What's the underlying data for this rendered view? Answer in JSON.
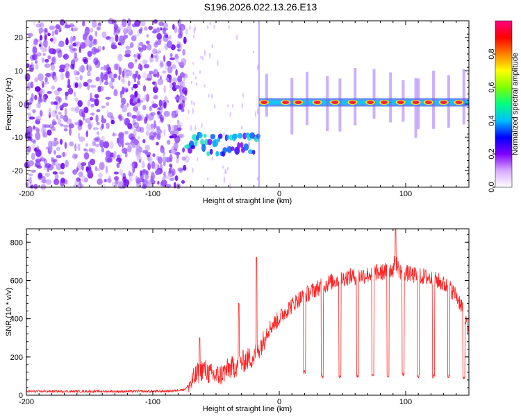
{
  "title": "S196.2026.022.13.26.E13",
  "chart_data": [
    {
      "type": "heatmap",
      "xlabel": "Height of straight line (km)",
      "ylabel": "Frequency (Hz)",
      "xlim": [
        -200,
        150
      ],
      "ylim": [
        -25,
        25
      ],
      "x_ticks": [
        -200,
        -100,
        0,
        100
      ],
      "y_ticks": [
        -20,
        -10,
        0,
        10,
        20
      ],
      "noise_region": [
        -200,
        -73
      ],
      "segments": [
        {
          "x_start": -73,
          "x_end": -16,
          "frequency": -12
        },
        {
          "x_start": -16,
          "x_end": 150,
          "frequency": 0.5
        }
      ],
      "colorbar": {
        "label": "Normalized spectral amplitude",
        "ticks": [
          0.0,
          0.2,
          0.4,
          0.6,
          0.8
        ],
        "range": [
          0,
          1
        ],
        "colormap": [
          "#ffffff",
          "#d9a8ff",
          "#8000ff",
          "#0000ff",
          "#00bfff",
          "#00ff80",
          "#80ff00",
          "#ffff00",
          "#ff8000",
          "#ff0000",
          "#ff0080"
        ]
      }
    },
    {
      "type": "line",
      "xlabel": "Height of straight line (km)",
      "ylabel": "SNR (10 * v/v)",
      "xlim": [
        -200,
        150
      ],
      "ylim": [
        0,
        870
      ],
      "x_ticks": [
        -200,
        -100,
        0,
        100
      ],
      "y_ticks": [
        0,
        200,
        400,
        600,
        800
      ],
      "color": "#ff2222",
      "series": [
        {
          "x": [
            -200,
            -180,
            -160,
            -140,
            -120,
            -100,
            -85,
            -75,
            -70,
            -65,
            -60,
            -55,
            -50,
            -45,
            -40,
            -35,
            -30,
            -25,
            -20,
            -17,
            -15,
            -12,
            -10,
            -5,
            0,
            5,
            10,
            15,
            20,
            25,
            30,
            35,
            40,
            45,
            50,
            55,
            60,
            65,
            70,
            75,
            80,
            85,
            90,
            92,
            95,
            100,
            105,
            110,
            115,
            120,
            125,
            130,
            135,
            140,
            145,
            150
          ],
          "y": [
            20,
            20,
            20,
            20,
            20,
            20,
            22,
            30,
            60,
            110,
            140,
            110,
            100,
            110,
            140,
            150,
            170,
            190,
            200,
            230,
            260,
            290,
            330,
            370,
            400,
            440,
            470,
            500,
            520,
            540,
            560,
            570,
            590,
            600,
            610,
            620,
            620,
            625,
            630,
            640,
            640,
            650,
            660,
            700,
            650,
            640,
            630,
            620,
            620,
            610,
            600,
            580,
            560,
            520,
            460,
            320
          ]
        }
      ],
      "annotations": {
        "spikes": [
          {
            "x": -63,
            "y": 300
          },
          {
            "x": -32,
            "y": 480
          },
          {
            "x": -18,
            "y": 720
          },
          {
            "x": 92,
            "y": 870
          }
        ],
        "dropouts": [
          {
            "x": 20,
            "y": 120
          },
          {
            "x": 34,
            "y": 100
          },
          {
            "x": 48,
            "y": 100
          },
          {
            "x": 62,
            "y": 100
          },
          {
            "x": 74,
            "y": 100
          },
          {
            "x": 86,
            "y": 100
          },
          {
            "x": 98,
            "y": 110
          },
          {
            "x": 110,
            "y": 100
          },
          {
            "x": 122,
            "y": 100
          },
          {
            "x": 134,
            "y": 100
          },
          {
            "x": 146,
            "y": 90
          }
        ]
      }
    }
  ]
}
